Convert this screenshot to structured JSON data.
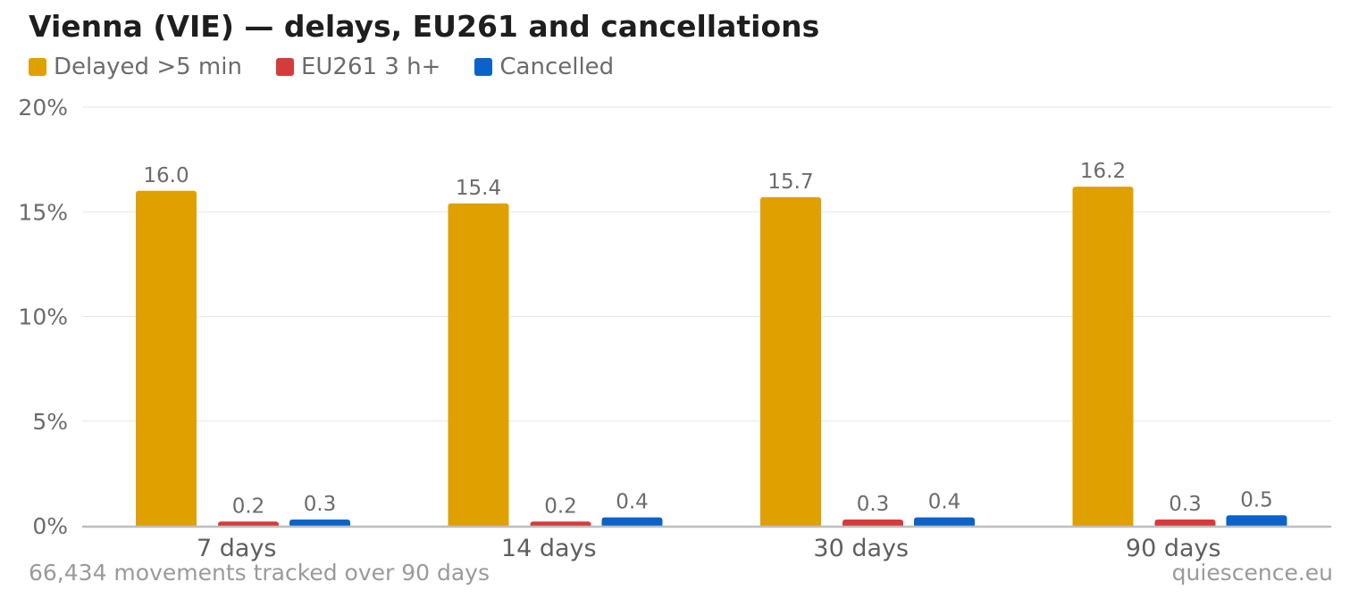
{
  "title": "Vienna (VIE) — delays, EU261 and cancellations",
  "footer": {
    "note": "66,434 movements tracked over 90 days",
    "source": "quiescence.eu"
  },
  "chart_data": {
    "type": "bar",
    "title": "Vienna (VIE) — delays, EU261 and cancellations",
    "categories": [
      "7 days",
      "14 days",
      "30 days",
      "90 days"
    ],
    "series": [
      {
        "name": "Delayed >5 min",
        "color": "#e0a000",
        "values": [
          16.0,
          15.4,
          15.7,
          16.2
        ]
      },
      {
        "name": "EU261 3 h+",
        "color": "#d63a3a",
        "values": [
          0.2,
          0.2,
          0.3,
          0.3
        ]
      },
      {
        "name": "Cancelled",
        "color": "#0a63c9",
        "values": [
          0.3,
          0.4,
          0.4,
          0.5
        ]
      }
    ],
    "yticks": [
      "0%",
      "5%",
      "10%",
      "15%",
      "20%"
    ],
    "ylim": [
      0,
      20
    ],
    "grid": true,
    "legend_position": "top-left"
  }
}
